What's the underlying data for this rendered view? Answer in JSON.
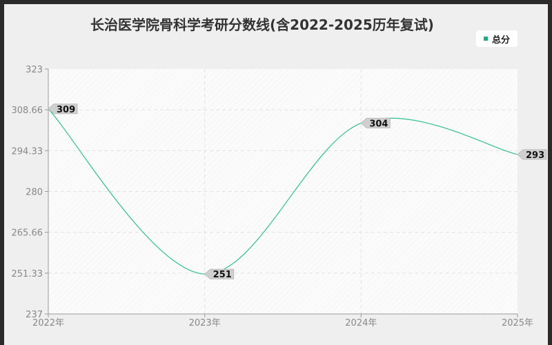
{
  "chart_data": {
    "type": "line",
    "title": "长治医学院骨科学考研分数线(含2022-2025历年复试)",
    "categories": [
      "2022年",
      "2023年",
      "2024年",
      "2025年"
    ],
    "series": [
      {
        "name": "总分",
        "values": [
          309,
          251,
          304,
          293
        ],
        "color": "#2ebf8f"
      }
    ],
    "data_labels": [
      "309",
      "251",
      "304",
      "293"
    ],
    "ylim": [
      237,
      323
    ],
    "yticks": [
      "237",
      "251.33",
      "265.66",
      "280",
      "294.33",
      "308.66",
      "323"
    ],
    "grid": true,
    "legend": "top-right"
  }
}
